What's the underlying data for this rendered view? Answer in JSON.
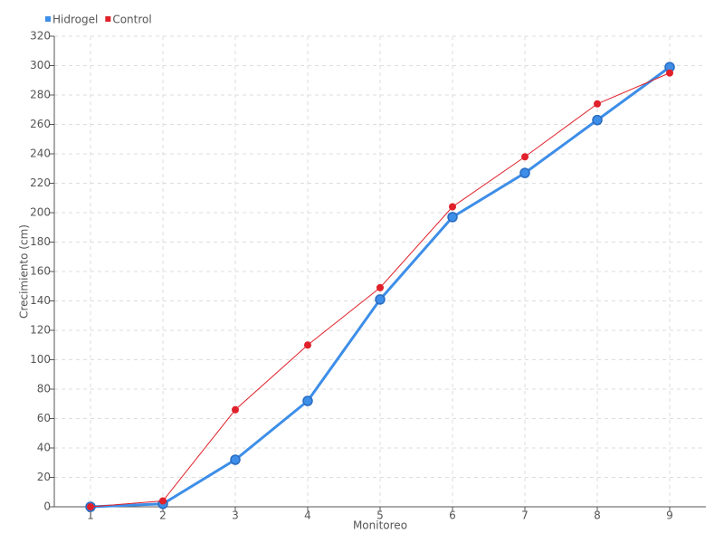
{
  "chart_data": {
    "type": "line",
    "x_label": "Monitoreo",
    "y_label": "Crecimiento (cm)",
    "x": [
      1,
      2,
      3,
      4,
      5,
      6,
      7,
      8,
      9
    ],
    "series": [
      {
        "name": "Hidrogel",
        "color": "#3d8ee8",
        "values": [
          0,
          2,
          32,
          72,
          141,
          197,
          227,
          263,
          299
        ]
      },
      {
        "name": "Control",
        "color": "#e0202a",
        "values": [
          0,
          4,
          66,
          110,
          149,
          204,
          238,
          274,
          295
        ]
      }
    ],
    "xlim": [
      0.5,
      9.5
    ],
    "xticks": [
      1,
      2,
      3,
      4,
      5,
      6,
      7,
      8,
      9
    ],
    "ylim": [
      0,
      320
    ],
    "yticks": [
      0,
      20,
      40,
      60,
      80,
      100,
      120,
      140,
      160,
      180,
      200,
      220,
      240,
      260,
      280,
      300,
      320
    ],
    "grid": true,
    "legend": "top-left"
  }
}
